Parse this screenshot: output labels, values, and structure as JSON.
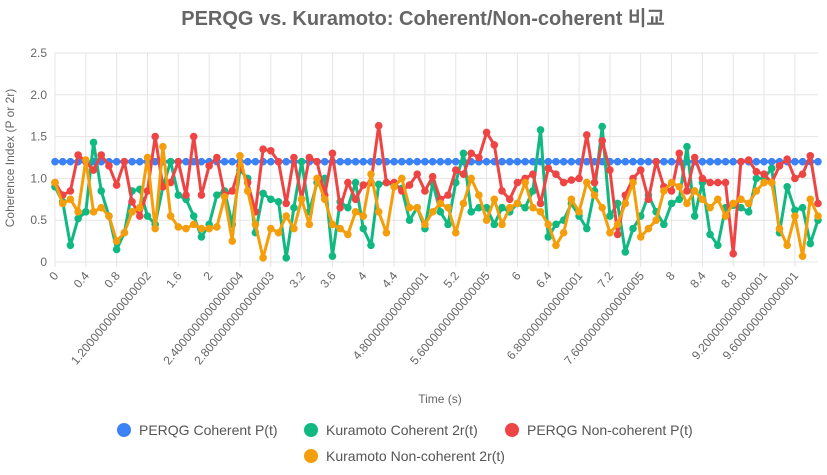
{
  "chart_data": {
    "type": "line",
    "title": "PERQG vs. Kuramoto: Coherent/Non-coherent 비교",
    "xlabel": "Time (s)",
    "ylabel": "Coherence Index (P or 2r)",
    "ylim": [
      0,
      2.5
    ],
    "yticks": [
      "0",
      "0.5",
      "1.0",
      "1.5",
      "2.0",
      "2.5"
    ],
    "grid": true,
    "legend_position": "bottom",
    "x_tick_labels": [
      {
        "i": 0,
        "label": "0"
      },
      {
        "i": 4,
        "label": "0.4"
      },
      {
        "i": 8,
        "label": "0.8"
      },
      {
        "i": 12,
        "label": "1.2000000000000002"
      },
      {
        "i": 16,
        "label": "1.6"
      },
      {
        "i": 20,
        "label": "2"
      },
      {
        "i": 24,
        "label": "2.4000000000000004"
      },
      {
        "i": 28,
        "label": "2.8000000000000003"
      },
      {
        "i": 32,
        "label": "3.2"
      },
      {
        "i": 36,
        "label": "3.6"
      },
      {
        "i": 40,
        "label": "4"
      },
      {
        "i": 44,
        "label": "4.4"
      },
      {
        "i": 48,
        "label": "4.800000000000001"
      },
      {
        "i": 52,
        "label": "5.2"
      },
      {
        "i": 56,
        "label": "5.6000000000000005"
      },
      {
        "i": 60,
        "label": "6"
      },
      {
        "i": 64,
        "label": "6.4"
      },
      {
        "i": 68,
        "label": "6.800000000000001"
      },
      {
        "i": 72,
        "label": "7.2"
      },
      {
        "i": 76,
        "label": "7.6000000000000005"
      },
      {
        "i": 80,
        "label": "8"
      },
      {
        "i": 84,
        "label": "8.4"
      },
      {
        "i": 88,
        "label": "8.8"
      },
      {
        "i": 92,
        "label": "9.200000000000001"
      },
      {
        "i": 96,
        "label": "9.600000000000001"
      }
    ],
    "num_points": 100,
    "series": [
      {
        "name": "PERQG Coherent P(t)",
        "color": "#3b82f6",
        "values": [
          1.2,
          1.2,
          1.2,
          1.2,
          1.2,
          1.2,
          1.2,
          1.2,
          1.2,
          1.2,
          1.2,
          1.2,
          1.2,
          1.2,
          1.2,
          1.2,
          1.2,
          1.2,
          1.2,
          1.2,
          1.2,
          1.2,
          1.2,
          1.2,
          1.2,
          1.2,
          1.2,
          1.2,
          1.2,
          1.2,
          1.2,
          1.2,
          1.2,
          1.2,
          1.2,
          1.2,
          1.2,
          1.2,
          1.2,
          1.2,
          1.2,
          1.2,
          1.2,
          1.2,
          1.2,
          1.2,
          1.2,
          1.2,
          1.2,
          1.2,
          1.2,
          1.2,
          1.2,
          1.2,
          1.2,
          1.2,
          1.2,
          1.2,
          1.2,
          1.2,
          1.2,
          1.2,
          1.2,
          1.2,
          1.2,
          1.2,
          1.2,
          1.2,
          1.2,
          1.2,
          1.2,
          1.2,
          1.2,
          1.2,
          1.2,
          1.2,
          1.2,
          1.2,
          1.2,
          1.2,
          1.2,
          1.2,
          1.2,
          1.2,
          1.2,
          1.2,
          1.2,
          1.2,
          1.2,
          1.2,
          1.2,
          1.2,
          1.2,
          1.2,
          1.2,
          1.2,
          1.2,
          1.2,
          1.2,
          1.2
        ]
      },
      {
        "name": "Kuramoto Coherent 2r(t)",
        "color": "#10b981",
        "values": [
          0.9,
          0.72,
          0.2,
          0.52,
          0.6,
          1.43,
          0.85,
          0.55,
          0.15,
          0.35,
          0.85,
          0.87,
          0.55,
          0.45,
          0.9,
          1.2,
          0.8,
          0.75,
          0.55,
          0.3,
          0.45,
          0.8,
          0.85,
          0.45,
          1.1,
          1.0,
          0.35,
          0.82,
          0.75,
          0.72,
          0.05,
          0.65,
          1.2,
          0.6,
          0.95,
          1.0,
          0.07,
          0.72,
          0.65,
          0.95,
          0.4,
          0.2,
          0.93,
          0.95,
          0.92,
          0.88,
          0.5,
          0.65,
          0.4,
          0.95,
          0.6,
          0.45,
          0.95,
          1.3,
          0.6,
          0.65,
          0.65,
          0.45,
          0.65,
          0.6,
          0.7,
          0.65,
          0.85,
          1.58,
          0.3,
          0.45,
          0.5,
          0.7,
          0.55,
          0.4,
          0.85,
          1.62,
          0.55,
          0.7,
          0.12,
          0.4,
          0.55,
          0.8,
          0.6,
          0.45,
          0.7,
          0.75,
          1.38,
          0.55,
          0.95,
          0.33,
          0.2,
          0.65,
          0.68,
          0.65,
          0.6,
          1.0,
          1.0,
          1.12,
          0.35,
          0.9,
          0.62,
          0.65,
          0.22,
          0.5
        ]
      },
      {
        "name": "PERQG Non-coherent P(t)",
        "color": "#ef4444",
        "values": [
          0.95,
          0.8,
          0.85,
          1.28,
          1.2,
          1.1,
          1.28,
          1.15,
          0.92,
          1.2,
          0.72,
          0.55,
          0.85,
          1.5,
          0.9,
          0.95,
          1.2,
          0.8,
          1.5,
          0.8,
          1.15,
          1.25,
          0.8,
          0.85,
          1.15,
          0.95,
          0.6,
          1.35,
          1.33,
          1.2,
          0.7,
          1.25,
          0.75,
          1.25,
          1.2,
          0.8,
          1.3,
          0.65,
          0.95,
          0.75,
          0.92,
          0.95,
          1.63,
          0.95,
          0.95,
          0.85,
          0.92,
          1.05,
          0.85,
          1.02,
          0.75,
          0.8,
          1.1,
          1.05,
          1.3,
          1.25,
          1.55,
          1.4,
          0.85,
          0.75,
          0.95,
          1.0,
          1.05,
          0.7,
          1.12,
          1.05,
          0.95,
          0.98,
          1.0,
          1.52,
          0.95,
          1.45,
          1.1,
          0.33,
          0.8,
          1.0,
          1.1,
          0.75,
          1.2,
          0.9,
          0.85,
          1.3,
          0.85,
          1.25,
          1.0,
          0.95,
          0.95,
          0.95,
          0.1,
          1.2,
          1.22,
          1.08,
          1.05,
          0.95,
          1.15,
          1.23,
          1.0,
          1.05,
          1.27,
          0.7
        ]
      },
      {
        "name": "Kuramoto Non-coherent 2r(t)",
        "color": "#f59e0b",
        "values": [
          0.95,
          0.7,
          0.75,
          0.6,
          1.22,
          0.6,
          0.65,
          0.55,
          0.25,
          0.35,
          0.6,
          0.65,
          1.25,
          0.4,
          1.38,
          0.55,
          0.42,
          0.4,
          0.45,
          0.4,
          0.4,
          0.42,
          0.78,
          0.25,
          1.27,
          0.85,
          0.45,
          0.05,
          0.4,
          0.35,
          0.55,
          0.4,
          0.75,
          0.45,
          1.0,
          0.75,
          0.45,
          0.4,
          0.33,
          0.6,
          0.55,
          1.05,
          0.6,
          0.35,
          0.9,
          1.0,
          0.65,
          0.65,
          0.45,
          0.6,
          0.7,
          0.65,
          0.35,
          0.7,
          1.0,
          0.8,
          0.5,
          0.75,
          0.45,
          0.65,
          0.7,
          0.95,
          0.65,
          0.6,
          0.45,
          0.2,
          0.35,
          0.75,
          0.6,
          0.95,
          0.8,
          0.65,
          0.35,
          0.45,
          0.7,
          0.95,
          0.3,
          0.4,
          0.5,
          0.85,
          0.95,
          0.9,
          0.7,
          0.85,
          0.75,
          0.65,
          0.75,
          0.55,
          0.7,
          0.75,
          0.7,
          0.85,
          0.95,
          0.95,
          0.4,
          0.2,
          0.55,
          0.07,
          0.75,
          0.55
        ]
      }
    ]
  }
}
